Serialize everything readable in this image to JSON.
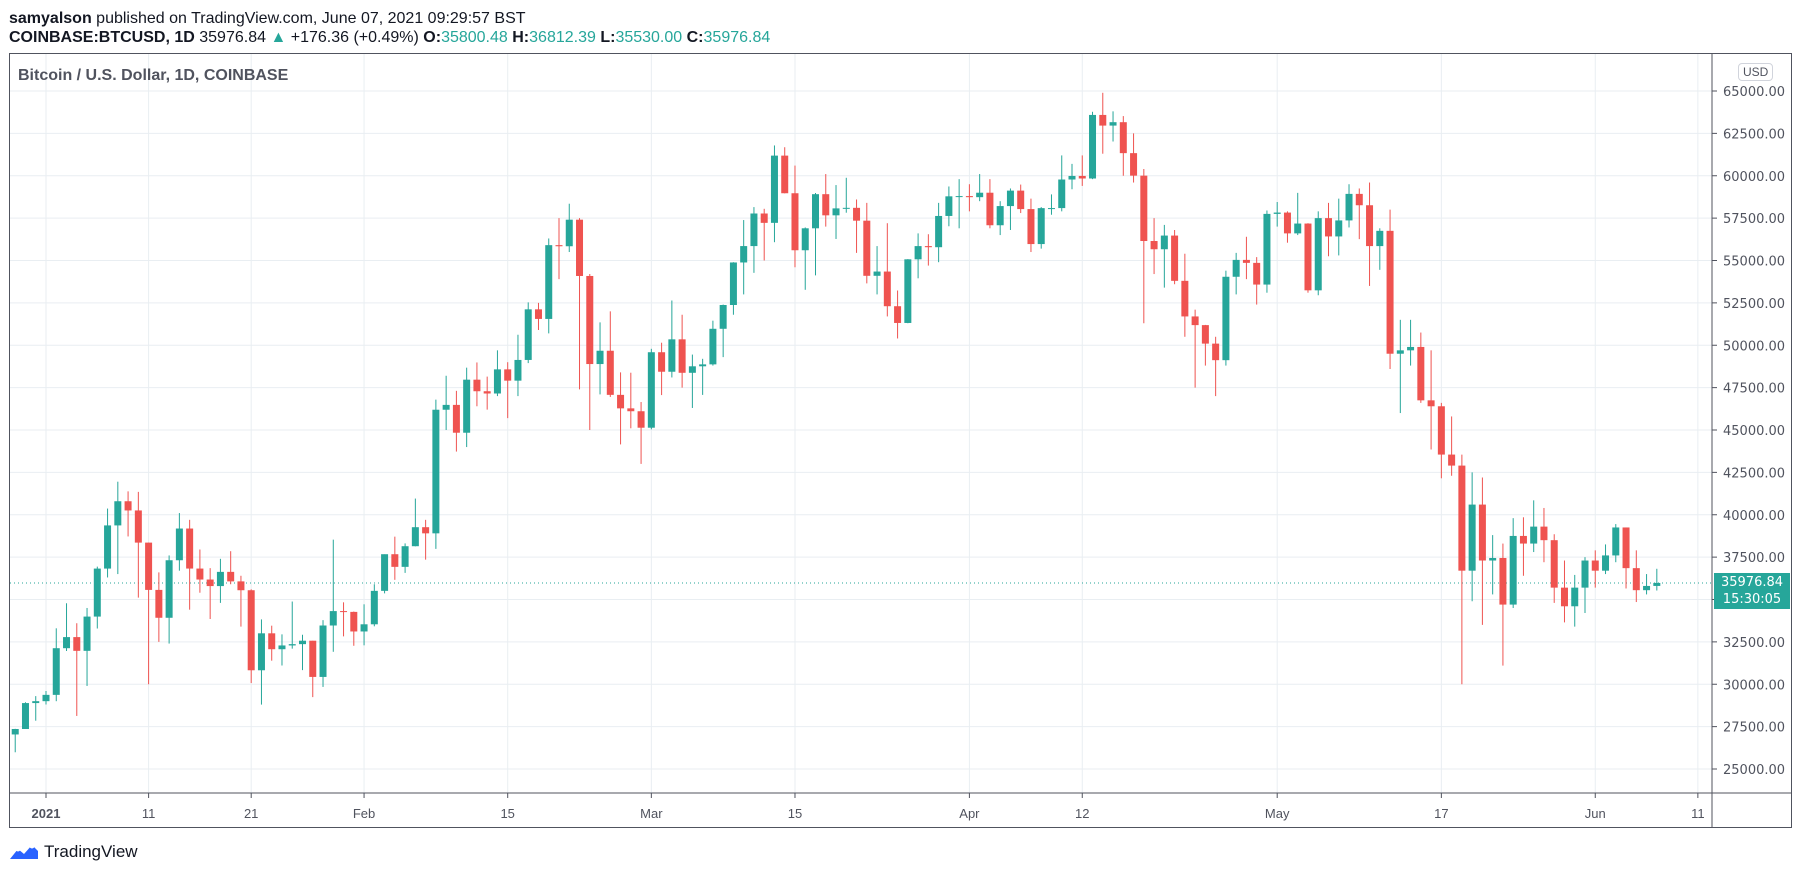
{
  "header": {
    "author": "samyalson",
    "published": "published on TradingView.com, June 07, 2021 09:29:57 BST",
    "symbol": "COINBASE:BTCUSD, 1D",
    "last": "35976.84",
    "arrow": "▲",
    "change": "+176.36 (+0.49%)",
    "o_label": "O:",
    "o": "35800.48",
    "h_label": "H:",
    "h": "36812.39",
    "l_label": "L:",
    "l": "35530.00",
    "c_label": "C:",
    "c": "35976.84"
  },
  "logo": "TradingView",
  "colors": {
    "up": "#26a69a",
    "down": "#ef5350"
  },
  "chart_data": {
    "type": "candlestick",
    "title": "Bitcoin / U.S. Dollar, 1D, COINBASE",
    "currency": "USD",
    "ylim": [
      23750,
      66000
    ],
    "grid": true,
    "yticks": [
      "65000.00",
      "62500.00",
      "60000.00",
      "57500.00",
      "55000.00",
      "52500.00",
      "50000.00",
      "47500.00",
      "45000.00",
      "42500.00",
      "40000.00",
      "37500.00",
      "32500.00",
      "30000.00",
      "27500.00",
      "25000.00"
    ],
    "xticks": [
      [
        "2021",
        "2021-01-01"
      ],
      [
        "11",
        "2021-01-11"
      ],
      [
        "21",
        "2021-01-21"
      ],
      [
        "Feb",
        "2021-02-01"
      ],
      [
        "15",
        "2021-02-15"
      ],
      [
        "Mar",
        "2021-03-01"
      ],
      [
        "15",
        "2021-03-15"
      ],
      [
        "Apr",
        "2021-04-01"
      ],
      [
        "12",
        "2021-04-12"
      ],
      [
        "May",
        "2021-05-01"
      ],
      [
        "17",
        "2021-05-17"
      ],
      [
        "Jun",
        "2021-06-01"
      ],
      [
        "11",
        "2021-06-11"
      ]
    ],
    "last_price": "35976.84",
    "countdown": "15:30:05",
    "start_date": "2020-12-29",
    "ohlc": [
      [
        27038,
        27370,
        25987,
        27360
      ],
      [
        27360,
        28937,
        27360,
        28890
      ],
      [
        28890,
        29300,
        27850,
        29002
      ],
      [
        29002,
        29600,
        28803,
        29374
      ],
      [
        29374,
        33300,
        29000,
        32127
      ],
      [
        32127,
        34778,
        31962,
        32782
      ],
      [
        32782,
        33600,
        28130,
        31971
      ],
      [
        31971,
        34500,
        29900,
        33992
      ],
      [
        33992,
        36939,
        33288,
        36824
      ],
      [
        36824,
        40365,
        36300,
        39371
      ],
      [
        39371,
        41950,
        36500,
        40797
      ],
      [
        40797,
        41380,
        38720,
        40254
      ],
      [
        40254,
        41350,
        35111,
        38356
      ],
      [
        38356,
        38356,
        30000,
        35566
      ],
      [
        35566,
        36600,
        32500,
        33922
      ],
      [
        33922,
        37600,
        32400,
        37316
      ],
      [
        37316,
        40100,
        36700,
        39187
      ],
      [
        39187,
        39700,
        34400,
        36825
      ],
      [
        36825,
        37950,
        35400,
        36178
      ],
      [
        36178,
        36850,
        33850,
        35792
      ],
      [
        35792,
        37400,
        34800,
        36630
      ],
      [
        36630,
        37850,
        35900,
        36069
      ],
      [
        36069,
        36400,
        33400,
        35547
      ],
      [
        35547,
        35600,
        30071,
        30825
      ],
      [
        30825,
        33826,
        28800,
        33005
      ],
      [
        33005,
        33456,
        31390,
        32067
      ],
      [
        32067,
        32944,
        31106,
        32289
      ],
      [
        32289,
        34880,
        32100,
        32366
      ],
      [
        32366,
        32921,
        30837,
        32569
      ],
      [
        32569,
        32564,
        29241,
        30432
      ],
      [
        30432,
        33783,
        29842,
        33466
      ],
      [
        33466,
        38531,
        31915,
        34316
      ],
      [
        34316,
        34834,
        32825,
        34269
      ],
      [
        34269,
        34288,
        32270,
        33114
      ],
      [
        33114,
        34717,
        32296,
        33537
      ],
      [
        33537,
        35900,
        33418,
        35510
      ],
      [
        35510,
        37662,
        35362,
        37672
      ],
      [
        37672,
        38708,
        36161,
        36926
      ],
      [
        36926,
        38310,
        36570,
        38144
      ],
      [
        38144,
        40955,
        38138,
        39266
      ],
      [
        39266,
        39700,
        37351,
        38903
      ],
      [
        38903,
        46794,
        37988,
        46196
      ],
      [
        46196,
        48200,
        45000,
        46481
      ],
      [
        46481,
        47310,
        43727,
        44839
      ],
      [
        44839,
        48678,
        43994,
        47969
      ],
      [
        47969,
        48985,
        46400,
        47287
      ],
      [
        47287,
        48150,
        46202,
        47153
      ],
      [
        47153,
        49700,
        47000,
        48577
      ],
      [
        48577,
        49000,
        45700,
        47911
      ],
      [
        47911,
        50620,
        47000,
        49133
      ],
      [
        49133,
        52530,
        48947,
        52119
      ],
      [
        52119,
        52500,
        50900,
        51553
      ],
      [
        51553,
        56300,
        50700,
        55906
      ],
      [
        55906,
        57500,
        53900,
        55841
      ],
      [
        55841,
        58350,
        55500,
        57408
      ],
      [
        57408,
        57500,
        47400,
        54087
      ],
      [
        54087,
        54200,
        45000,
        48891
      ],
      [
        48891,
        51350,
        47100,
        49676
      ],
      [
        49676,
        52000,
        46950,
        47073
      ],
      [
        47073,
        48400,
        44150,
        46277
      ],
      [
        46277,
        48380,
        45100,
        46107
      ],
      [
        46107,
        46650,
        43000,
        45135
      ],
      [
        45135,
        49790,
        45041,
        49588
      ],
      [
        49588,
        50150,
        47060,
        48437
      ],
      [
        48437,
        52640,
        48100,
        50349
      ],
      [
        50349,
        51800,
        47500,
        48375
      ],
      [
        48375,
        49450,
        46300,
        48758
      ],
      [
        48758,
        49200,
        47070,
        48872
      ],
      [
        48872,
        51450,
        48800,
        50971
      ],
      [
        50971,
        52400,
        49300,
        52375
      ],
      [
        52375,
        54900,
        51800,
        54884
      ],
      [
        54884,
        57387,
        53000,
        55851
      ],
      [
        55851,
        58150,
        54272,
        57773
      ],
      [
        57773,
        58050,
        55000,
        57221
      ],
      [
        57221,
        61788,
        56080,
        61188
      ],
      [
        61188,
        61683,
        58963,
        58968
      ],
      [
        58968,
        60600,
        54600,
        55605
      ],
      [
        55605,
        56950,
        53271,
        56900
      ],
      [
        56900,
        58981,
        54120,
        58913
      ],
      [
        58913,
        60100,
        57000,
        57665
      ],
      [
        57665,
        59450,
        56270,
        58075
      ],
      [
        58075,
        59880,
        57820,
        58107
      ],
      [
        58107,
        58600,
        55450,
        57350
      ],
      [
        57350,
        58400,
        53650,
        54097
      ],
      [
        54097,
        55850,
        53000,
        54348
      ],
      [
        54348,
        57200,
        51700,
        52303
      ],
      [
        52303,
        53230,
        50400,
        51315
      ],
      [
        51315,
        55080,
        51300,
        55070
      ],
      [
        55070,
        56600,
        53950,
        55850
      ],
      [
        55850,
        56550,
        54700,
        55784
      ],
      [
        55784,
        58400,
        54900,
        57628
      ],
      [
        57628,
        59368,
        57020,
        58786
      ],
      [
        58786,
        59800,
        56900,
        58800
      ],
      [
        58800,
        59500,
        57900,
        58736
      ],
      [
        58736,
        60100,
        58500,
        58999
      ],
      [
        58999,
        59800,
        56900,
        57080
      ],
      [
        57080,
        58500,
        56500,
        58211
      ],
      [
        58211,
        59250,
        56800,
        59123
      ],
      [
        59123,
        59480,
        57800,
        58033
      ],
      [
        58033,
        58650,
        55500,
        55970
      ],
      [
        55970,
        58150,
        55700,
        58090
      ],
      [
        58090,
        58900,
        57700,
        58093
      ],
      [
        58093,
        61200,
        57900,
        59778
      ],
      [
        59778,
        60700,
        59200,
        59988
      ],
      [
        59988,
        61200,
        59400,
        59838
      ],
      [
        59838,
        63774,
        59800,
        63588
      ],
      [
        63588,
        64895,
        61300,
        62959
      ],
      [
        62959,
        63800,
        62020,
        63160
      ],
      [
        63160,
        63520,
        60000,
        61334
      ],
      [
        61334,
        62500,
        59600,
        60006
      ],
      [
        60006,
        60400,
        51300,
        56150
      ],
      [
        56150,
        57500,
        54200,
        55664
      ],
      [
        55664,
        57100,
        53400,
        56471
      ],
      [
        56471,
        56800,
        53600,
        53800
      ],
      [
        53800,
        55400,
        50500,
        51700
      ],
      [
        51700,
        52100,
        47500,
        51188
      ],
      [
        51188,
        51200,
        48800,
        50096
      ],
      [
        50096,
        50500,
        47000,
        49120
      ],
      [
        49120,
        54400,
        48800,
        54040
      ],
      [
        54040,
        55450,
        53000,
        55036
      ],
      [
        55036,
        56400,
        53900,
        54860
      ],
      [
        54860,
        55200,
        52400,
        53580
      ],
      [
        53580,
        57950,
        53100,
        57750
      ],
      [
        57750,
        58450,
        57000,
        57828
      ],
      [
        57828,
        57900,
        56050,
        56600
      ],
      [
        56600,
        58990,
        56500,
        57180
      ],
      [
        57180,
        57200,
        53100,
        53240
      ],
      [
        53240,
        57900,
        52950,
        57500
      ],
      [
        57500,
        58400,
        55250,
        56420
      ],
      [
        56420,
        58650,
        55300,
        57365
      ],
      [
        57365,
        59500,
        56950,
        58930
      ],
      [
        58930,
        59250,
        56260,
        58260
      ],
      [
        58260,
        59600,
        53500,
        55850
      ],
      [
        55850,
        56900,
        54450,
        56750
      ],
      [
        56750,
        58000,
        48600,
        49500
      ],
      [
        49500,
        51500,
        46000,
        49700
      ],
      [
        49700,
        51500,
        48800,
        49900
      ],
      [
        49900,
        50750,
        46600,
        46750
      ],
      [
        46750,
        49700,
        43850,
        46400
      ],
      [
        46400,
        46600,
        42150,
        43550
      ],
      [
        43550,
        45800,
        42300,
        42900
      ],
      [
        42900,
        43550,
        30000,
        36700
      ],
      [
        36700,
        42500,
        34900,
        40600
      ],
      [
        40600,
        42200,
        33500,
        37300
      ],
      [
        37300,
        38800,
        35300,
        37450
      ],
      [
        37450,
        38300,
        31100,
        34700
      ],
      [
        34700,
        39800,
        34500,
        38750
      ],
      [
        38750,
        39850,
        36400,
        38300
      ],
      [
        38300,
        40850,
        37800,
        39300
      ],
      [
        39300,
        40400,
        37200,
        38500
      ],
      [
        38500,
        38850,
        34800,
        35700
      ],
      [
        35700,
        37300,
        33650,
        34600
      ],
      [
        34600,
        36450,
        33400,
        35700
      ],
      [
        35700,
        37500,
        34200,
        37300
      ],
      [
        37300,
        37900,
        35700,
        36700
      ],
      [
        36700,
        38250,
        36500,
        37600
      ],
      [
        37600,
        39450,
        37200,
        39250
      ],
      [
        39250,
        39250,
        35650,
        36850
      ],
      [
        36850,
        37900,
        34850,
        35550
      ],
      [
        35550,
        36500,
        35300,
        35800
      ],
      [
        35800.48,
        36812.39,
        35530,
        35976.84
      ]
    ]
  }
}
